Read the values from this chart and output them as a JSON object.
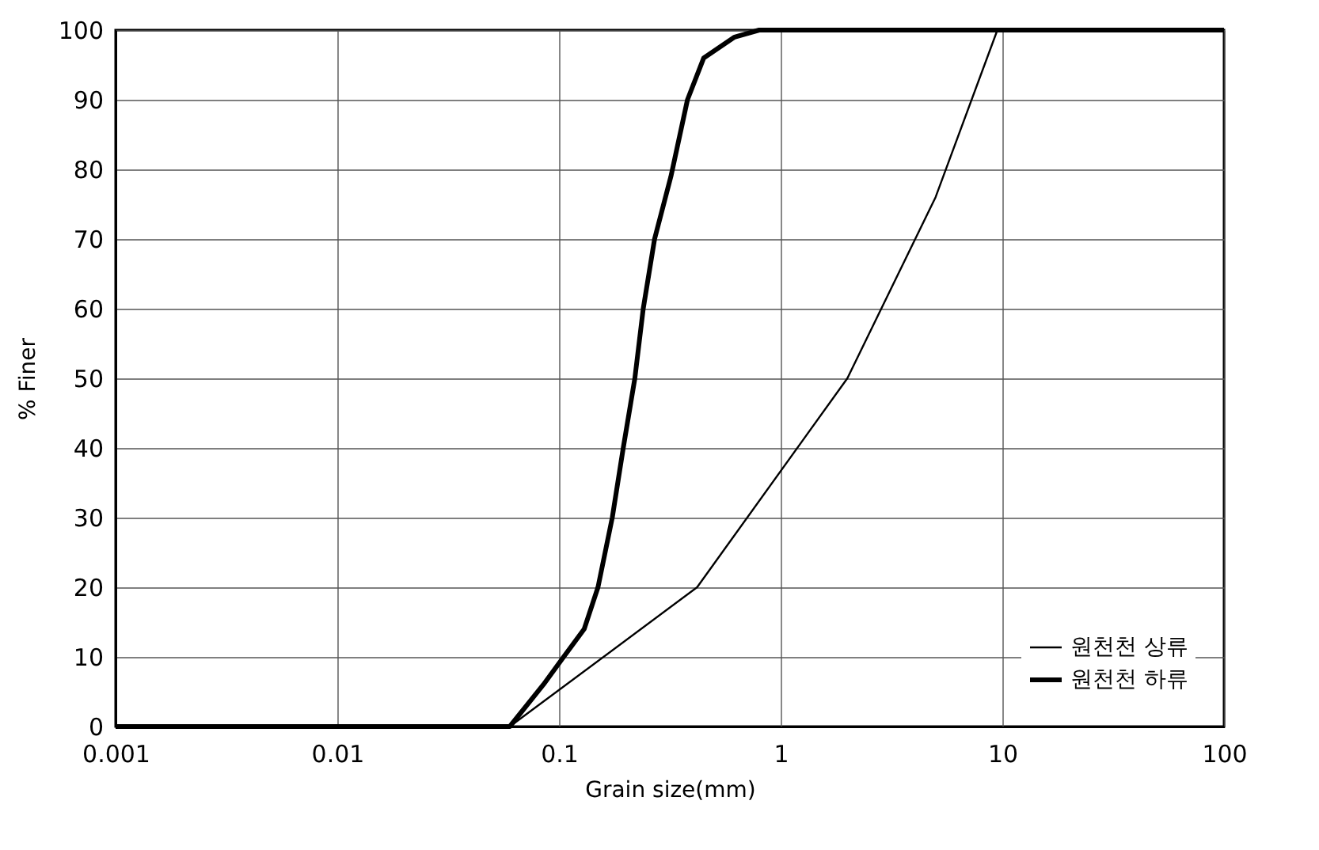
{
  "chart_data": {
    "type": "line",
    "xlabel": "Grain size(mm)",
    "ylabel": "% Finer",
    "log": "x",
    "xlim": [
      0.001,
      100
    ],
    "xticks": [
      0.001,
      0.01,
      0.1,
      1,
      10,
      100
    ],
    "ylim": [
      0,
      100
    ],
    "yticks": [
      0,
      10,
      20,
      30,
      40,
      50,
      60,
      70,
      80,
      90,
      100
    ],
    "grid": true,
    "legend": "bottom right",
    "marker": "none",
    "line_style": "solid",
    "series": [
      {
        "name": "원천천 상류",
        "color": "#000000",
        "x": [
          0.001,
          0.06,
          0.42,
          2,
          5,
          9.5,
          100
        ],
        "values": [
          0,
          0,
          20,
          50,
          76,
          100,
          100
        ]
      },
      {
        "name": "원천천 하류",
        "color": "#000000",
        "x": [
          0.001,
          0.06,
          0.085,
          0.105,
          0.13,
          0.15,
          0.174,
          0.195,
          0.22,
          0.24,
          0.27,
          0.32,
          0.38,
          0.45,
          0.62,
          0.8,
          100
        ],
        "values": [
          0,
          0,
          6,
          10,
          14,
          20,
          30,
          40,
          50,
          60,
          70,
          79,
          90,
          96,
          99,
          100,
          100
        ]
      }
    ]
  }
}
